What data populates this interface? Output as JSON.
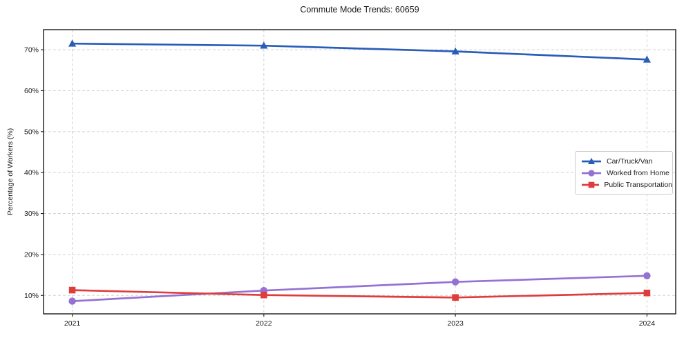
{
  "chart_data": {
    "type": "line",
    "title": "Commute Mode Trends: 60659",
    "xlabel": "",
    "ylabel": "Percentage of Workers (%)",
    "x": [
      2021,
      2022,
      2023,
      2024
    ],
    "x_tick_labels": [
      "2021",
      "2022",
      "2023",
      "2024"
    ],
    "y_ticks": [
      10,
      20,
      30,
      40,
      50,
      60,
      70
    ],
    "y_tick_format": "{v}%",
    "xlim": [
      2020.85,
      2024.15
    ],
    "ylim": [
      5.5,
      74.9
    ],
    "grid": true,
    "grid_color": "#d3d3d3",
    "axis_color": "#1a1a1a",
    "legend_position": "center-right",
    "series": [
      {
        "name": "Car/Truck/Van",
        "color": "#2a5db8",
        "marker": "triangle",
        "values": [
          71.5,
          71.0,
          69.6,
          67.6
        ]
      },
      {
        "name": "Worked from Home",
        "color": "#9571d4",
        "marker": "circle",
        "values": [
          8.6,
          11.2,
          13.3,
          14.8
        ]
      },
      {
        "name": "Public Transportation",
        "color": "#e03c3c",
        "marker": "square",
        "values": [
          11.3,
          10.1,
          9.5,
          10.6
        ]
      }
    ]
  }
}
